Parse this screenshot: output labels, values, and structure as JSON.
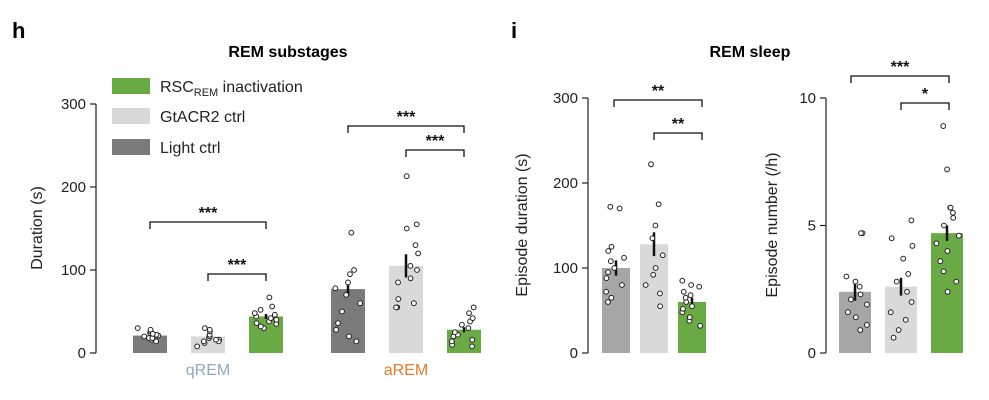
{
  "panels": {
    "h": {
      "letter": "h",
      "title": "REM substages"
    },
    "i": {
      "letter": "i",
      "title": "REM sleep"
    }
  },
  "legend": [
    {
      "name": "RSC",
      "sub": "REM",
      "suffix": " inactivation",
      "color": "#6aaa45"
    },
    {
      "name": "GtACR2 ctrl",
      "color": "#d9d9d9"
    },
    {
      "name": "Light ctrl",
      "color": "#7a7a7a"
    }
  ],
  "chart_data": [
    {
      "id": "h",
      "type": "bar",
      "title": "REM substages",
      "ylabel": "Duration (s)",
      "ylim": [
        0,
        300
      ],
      "yticks": [
        0,
        100,
        200,
        300
      ],
      "groups": [
        {
          "label": "qREM",
          "label_color": "#8fa8c0"
        },
        {
          "label": "aREM",
          "label_color": "#e07b2c"
        }
      ],
      "series": [
        {
          "name": "Light ctrl",
          "color": "#7a7a7a",
          "means": [
            21,
            77
          ],
          "sem": [
            2,
            8
          ],
          "points": [
            [
              14,
              16,
              18,
              20,
              21,
              22,
              24,
              26,
              28,
              30,
              18,
              23
            ],
            [
              14,
              20,
              28,
              36,
              50,
              60,
              70,
              78,
              85,
              95,
              100,
              145
            ]
          ]
        },
        {
          "name": "GtACR2 ctrl",
          "color": "#d9d9d9",
          "means": [
            20,
            105
          ],
          "sem": [
            3,
            14
          ],
          "points": [
            [
              8,
              12,
              14,
              16,
              18,
              20,
              22,
              26,
              28,
              30,
              14,
              16
            ],
            [
              55,
              55,
              60,
              65,
              85,
              90,
              100,
              105,
              120,
              130,
              150,
              155,
              213
            ]
          ]
        },
        {
          "name": "RSC REM inactivation",
          "color": "#6aaa45",
          "means": [
            44,
            28
          ],
          "sem": [
            3,
            3
          ],
          "points": [
            [
              30,
              32,
              35,
              38,
              40,
              42,
              44,
              46,
              48,
              52,
              56,
              67,
              36
            ],
            [
              8,
              10,
              14,
              16,
              20,
              22,
              25,
              30,
              34,
              38,
              42,
              48,
              55
            ]
          ]
        }
      ],
      "significance": [
        {
          "group": 0,
          "from": 0,
          "to": 2,
          "label": "***",
          "level": 2
        },
        {
          "group": 0,
          "from": 1,
          "to": 2,
          "label": "***",
          "level": 1
        },
        {
          "group": 1,
          "from": 0,
          "to": 2,
          "label": "***",
          "level": 2
        },
        {
          "group": 1,
          "from": 1,
          "to": 2,
          "label": "***",
          "level": 1
        }
      ]
    },
    {
      "id": "i1",
      "type": "bar",
      "title": "REM sleep",
      "ylabel": "Episode duration (s)",
      "ylim": [
        0,
        300
      ],
      "yticks": [
        0,
        100,
        200,
        300
      ],
      "categories": [
        "Light ctrl",
        "GtACR2 ctrl",
        "RSC REM inactivation"
      ],
      "colors": [
        "#a6a6a6",
        "#d9d9d9",
        "#6aaa45"
      ],
      "values": [
        100,
        128,
        60
      ],
      "sem": [
        9,
        14,
        5
      ],
      "points": [
        [
          60,
          65,
          72,
          80,
          88,
          95,
          100,
          108,
          112,
          120,
          125,
          170,
          172
        ],
        [
          55,
          70,
          80,
          92,
          100,
          115,
          135,
          150,
          175,
          222
        ],
        [
          32,
          38,
          42,
          48,
          52,
          55,
          60,
          65,
          68,
          72,
          78,
          80,
          85
        ]
      ],
      "significance": [
        {
          "from": 0,
          "to": 2,
          "label": "**",
          "level": 2
        },
        {
          "from": 1,
          "to": 2,
          "label": "**",
          "level": 1
        }
      ]
    },
    {
      "id": "i2",
      "type": "bar",
      "ylabel": "Episode number (/h)",
      "ylim": [
        0,
        10
      ],
      "yticks": [
        0,
        5,
        10
      ],
      "categories": [
        "Light ctrl",
        "GtACR2 ctrl",
        "RSC REM inactivation"
      ],
      "colors": [
        "#a6a6a6",
        "#d9d9d9",
        "#6aaa45"
      ],
      "values": [
        2.4,
        2.6,
        4.7
      ],
      "sem": [
        0.35,
        0.35,
        0.3
      ],
      "points": [
        [
          0.9,
          1.1,
          1.4,
          1.6,
          1.9,
          2.1,
          2.3,
          2.6,
          2.8,
          3.0,
          4.7,
          4.7
        ],
        [
          0.6,
          0.9,
          1.3,
          1.6,
          2.0,
          2.4,
          2.8,
          3.1,
          3.7,
          4.2,
          4.5,
          5.2
        ],
        [
          2.4,
          2.8,
          3.2,
          3.6,
          4.0,
          4.3,
          4.6,
          5.0,
          5.3,
          5.5,
          5.7,
          5.7,
          7.2,
          8.9
        ]
      ],
      "significance": [
        {
          "from": 0,
          "to": 2,
          "label": "***",
          "level": 2
        },
        {
          "from": 1,
          "to": 2,
          "label": "*",
          "level": 1
        }
      ]
    }
  ]
}
